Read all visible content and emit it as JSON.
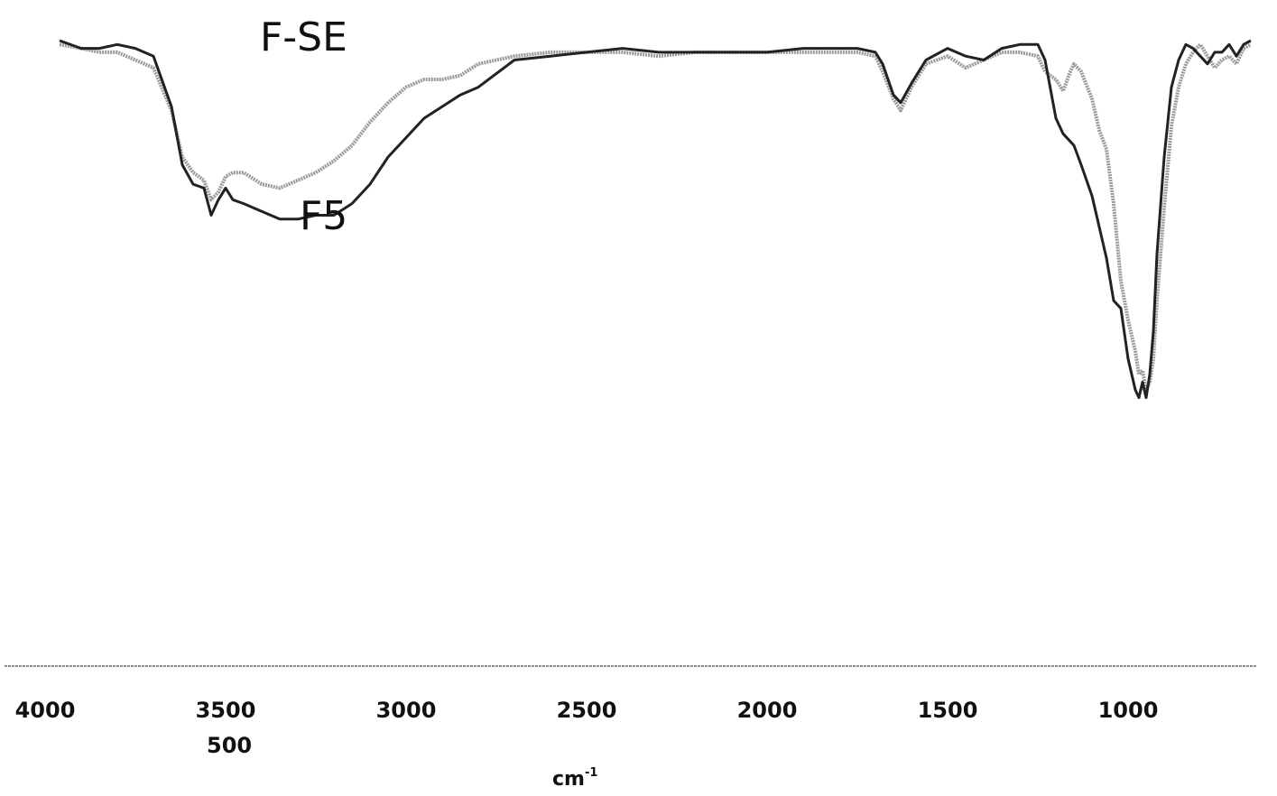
{
  "chart_data": {
    "type": "line",
    "title": "",
    "xlabel": "cm",
    "xlabel_superscript": "-1",
    "ylabel": "",
    "x_reversed": true,
    "xlim": [
      4000,
      650
    ],
    "x_ticks": [
      4000,
      3500,
      3000,
      2500,
      2000,
      1500,
      1000
    ],
    "extra_tick_label": "500",
    "grid": false,
    "legend": "inline labels",
    "series": [
      {
        "name": "F-SE",
        "color": "#9a9a9a",
        "style": "grey",
        "x": [
          3960,
          3900,
          3850,
          3800,
          3750,
          3700,
          3650,
          3620,
          3590,
          3560,
          3540,
          3520,
          3500,
          3480,
          3450,
          3400,
          3350,
          3300,
          3250,
          3200,
          3150,
          3100,
          3050,
          3000,
          2950,
          2900,
          2850,
          2800,
          2700,
          2600,
          2500,
          2400,
          2300,
          2200,
          2100,
          2000,
          1900,
          1800,
          1750,
          1700,
          1680,
          1650,
          1630,
          1600,
          1560,
          1500,
          1450,
          1400,
          1350,
          1300,
          1250,
          1230,
          1200,
          1180,
          1160,
          1150,
          1130,
          1100,
          1080,
          1060,
          1040,
          1020,
          1000,
          980,
          970,
          960,
          950,
          940,
          930,
          920,
          900,
          880,
          860,
          840,
          820,
          800,
          780,
          760,
          740,
          720,
          700,
          680,
          660
        ],
        "y": [
          99,
          98,
          97,
          97,
          95,
          93,
          82,
          70,
          66,
          64,
          59,
          61,
          65,
          66,
          66,
          63,
          62,
          64,
          66,
          69,
          73,
          79,
          84,
          88,
          90,
          90,
          91,
          94,
          96,
          97,
          97,
          97,
          96,
          97,
          97,
          97,
          97,
          97,
          97,
          96,
          92,
          85,
          82,
          88,
          94,
          96,
          93,
          95,
          97,
          97,
          96,
          92,
          90,
          87,
          92,
          94,
          92,
          85,
          77,
          72,
          58,
          38,
          28,
          20,
          14,
          15,
          10,
          12,
          18,
          33,
          57,
          78,
          88,
          94,
          97,
          99,
          96,
          93,
          95,
          96,
          94,
          98,
          99
        ]
      },
      {
        "name": "F5",
        "color": "#222222",
        "style": "black",
        "x": [
          3960,
          3900,
          3850,
          3800,
          3750,
          3700,
          3650,
          3620,
          3590,
          3560,
          3540,
          3520,
          3500,
          3480,
          3450,
          3400,
          3350,
          3300,
          3250,
          3200,
          3150,
          3100,
          3050,
          3000,
          2950,
          2900,
          2850,
          2800,
          2700,
          2600,
          2500,
          2400,
          2300,
          2200,
          2100,
          2000,
          1900,
          1800,
          1750,
          1700,
          1680,
          1650,
          1630,
          1600,
          1560,
          1500,
          1450,
          1400,
          1350,
          1300,
          1250,
          1230,
          1200,
          1180,
          1160,
          1150,
          1130,
          1100,
          1080,
          1060,
          1040,
          1020,
          1000,
          980,
          970,
          960,
          950,
          940,
          930,
          920,
          900,
          880,
          860,
          840,
          820,
          800,
          780,
          760,
          740,
          720,
          700,
          680,
          660
        ],
        "y": [
          100,
          98,
          98,
          99,
          98,
          96,
          83,
          68,
          63,
          62,
          55,
          59,
          62,
          59,
          58,
          56,
          54,
          54,
          55,
          55,
          58,
          63,
          70,
          75,
          80,
          83,
          86,
          88,
          95,
          96,
          97,
          98,
          97,
          97,
          97,
          97,
          98,
          98,
          98,
          97,
          94,
          86,
          84,
          89,
          95,
          98,
          96,
          95,
          98,
          99,
          99,
          95,
          80,
          76,
          74,
          73,
          68,
          60,
          52,
          44,
          33,
          31,
          18,
          10,
          8,
          12,
          8,
          14,
          25,
          45,
          70,
          88,
          95,
          99,
          98,
          96,
          94,
          97,
          97,
          99,
          96,
          99,
          100
        ]
      }
    ]
  }
}
